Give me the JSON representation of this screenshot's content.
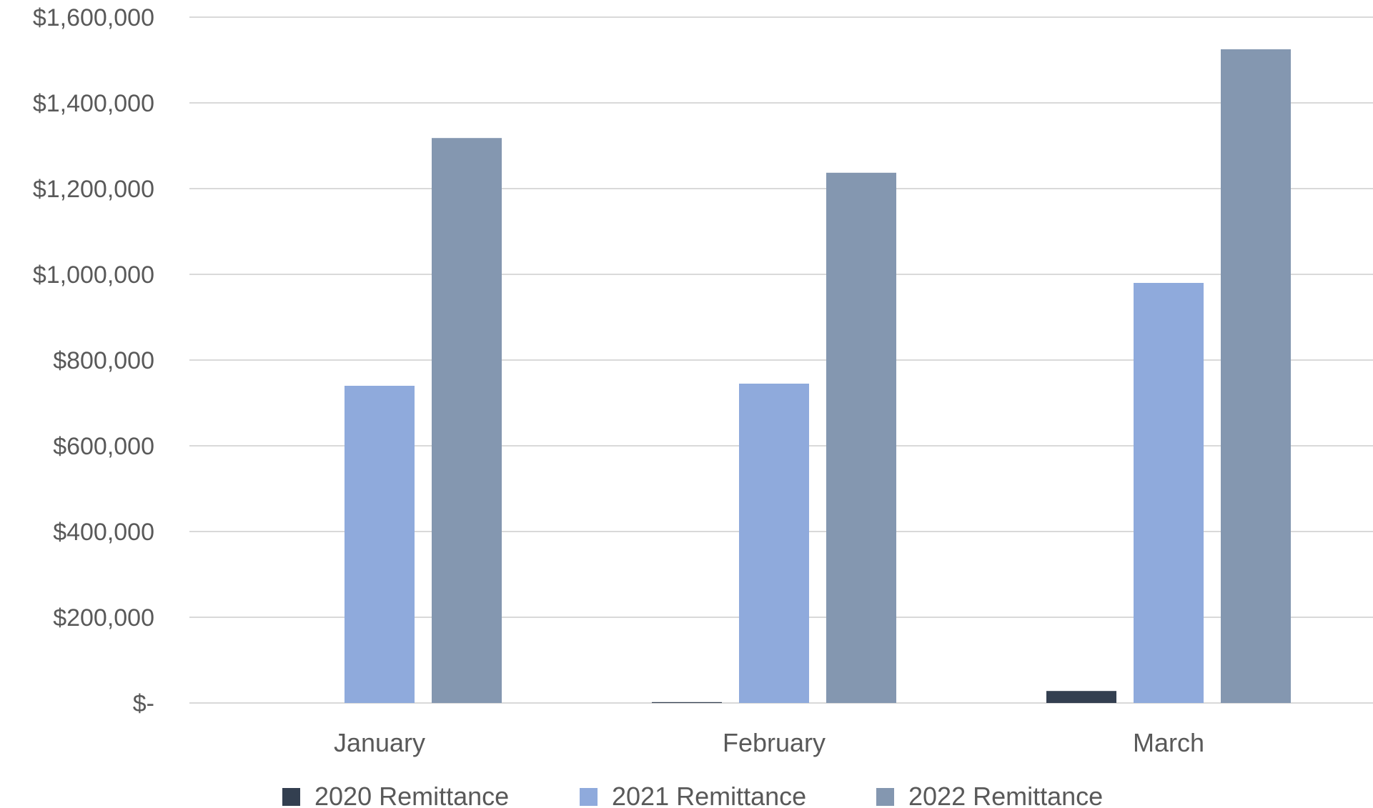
{
  "chart_data": {
    "type": "bar",
    "title": "",
    "xlabel": "",
    "ylabel": "",
    "categories": [
      "January",
      "February",
      "March"
    ],
    "series": [
      {
        "name": "2020 Remittance",
        "color": "#333f50",
        "values": [
          0,
          2000,
          28000
        ]
      },
      {
        "name": "2021 Remittance",
        "color": "#8faadc",
        "values": [
          740000,
          745000,
          980000
        ]
      },
      {
        "name": "2022 Remittance",
        "color": "#8497b0",
        "values": [
          1318000,
          1237000,
          1525000
        ]
      }
    ],
    "ylim": [
      0,
      1600000
    ],
    "y_ticks": [
      "$-",
      "$200,000",
      "$400,000",
      "$600,000",
      "$800,000",
      "$1,000,000",
      "$1,200,000",
      "$1,400,000",
      "$1,600,000"
    ],
    "y_tick_values": [
      0,
      200000,
      400000,
      600000,
      800000,
      1000000,
      1200000,
      1400000,
      1600000
    ],
    "grid": true,
    "legend_position": "bottom"
  }
}
